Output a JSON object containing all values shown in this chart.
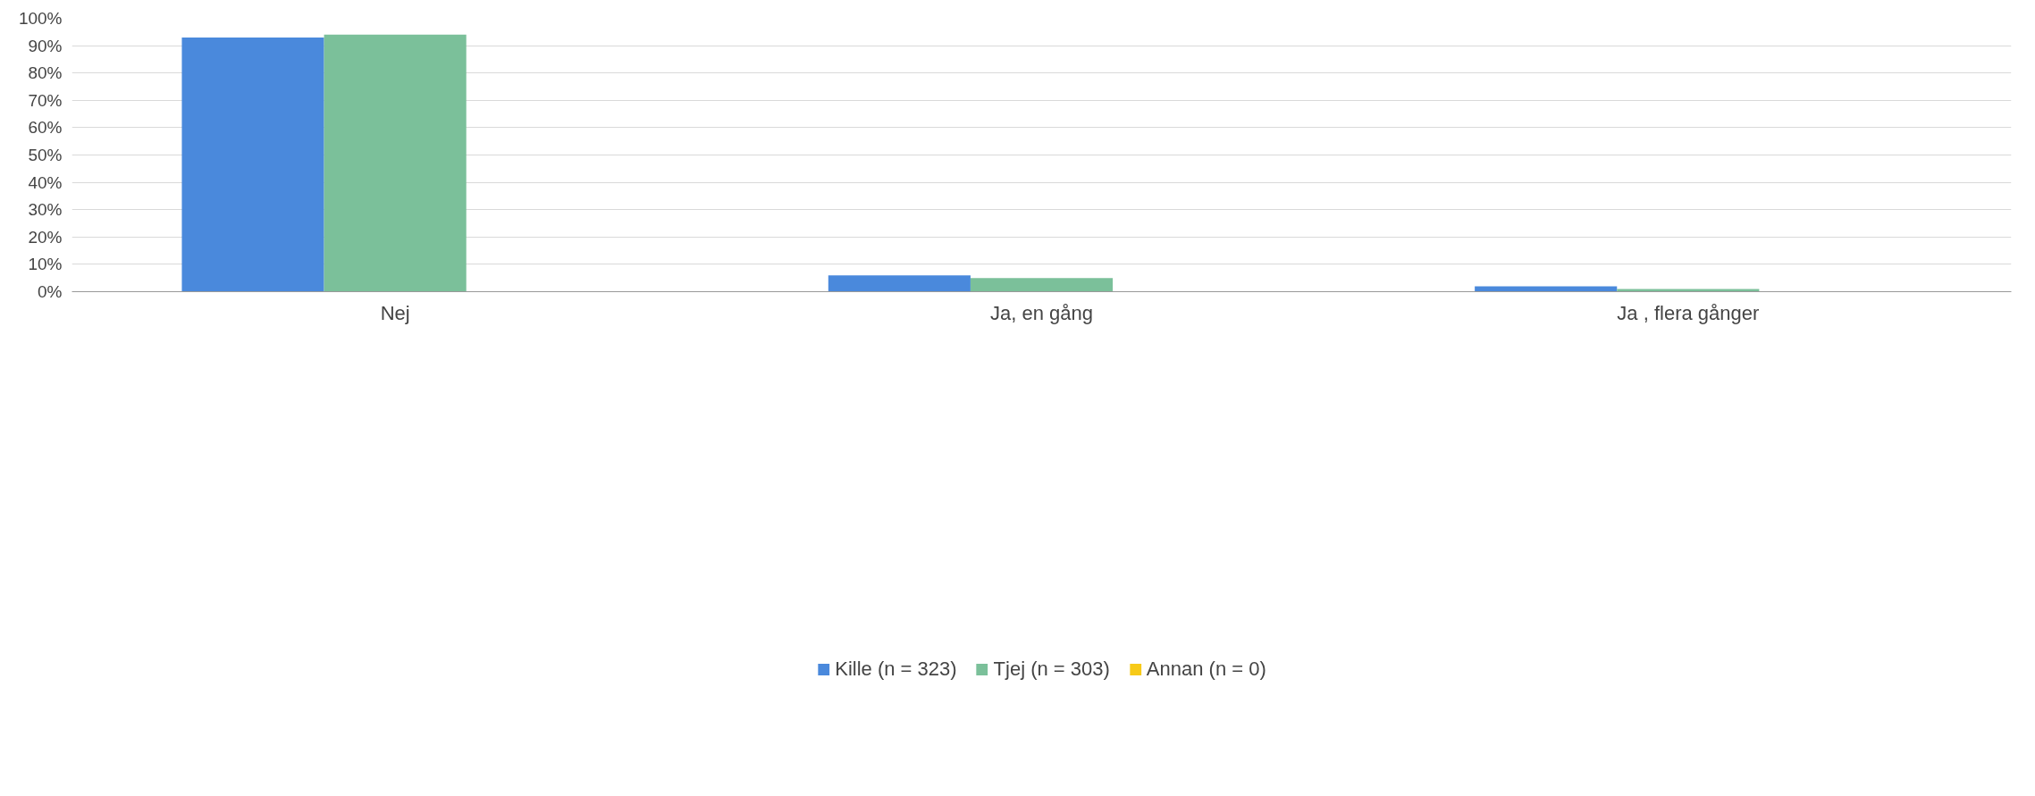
{
  "chart_data": {
    "type": "bar",
    "categories": [
      "Nej",
      "Ja, en gång",
      "Ja , flera gånger"
    ],
    "series": [
      {
        "name": "Kille (n = 323)",
        "color": "#4a89dc",
        "values": [
          93,
          6,
          2
        ]
      },
      {
        "name": "Tjej (n = 303)",
        "color": "#7bc09a",
        "values": [
          94,
          5,
          1
        ]
      },
      {
        "name": "Annan (n = 0)",
        "color": "#f7ca18",
        "values": [
          0,
          0,
          0
        ]
      }
    ],
    "ylim": [
      0,
      100
    ],
    "yticks": [
      {
        "value": 0,
        "label": "0%"
      },
      {
        "value": 10,
        "label": "10%"
      },
      {
        "value": 20,
        "label": "20%"
      },
      {
        "value": 30,
        "label": "30%"
      },
      {
        "value": 40,
        "label": "40%"
      },
      {
        "value": 50,
        "label": "50%"
      },
      {
        "value": 60,
        "label": "60%"
      },
      {
        "value": 70,
        "label": "70%"
      },
      {
        "value": 80,
        "label": "80%"
      },
      {
        "value": 90,
        "label": "90%"
      },
      {
        "value": 100,
        "label": "100%"
      }
    ],
    "grid": "y",
    "legend": "bottom"
  }
}
